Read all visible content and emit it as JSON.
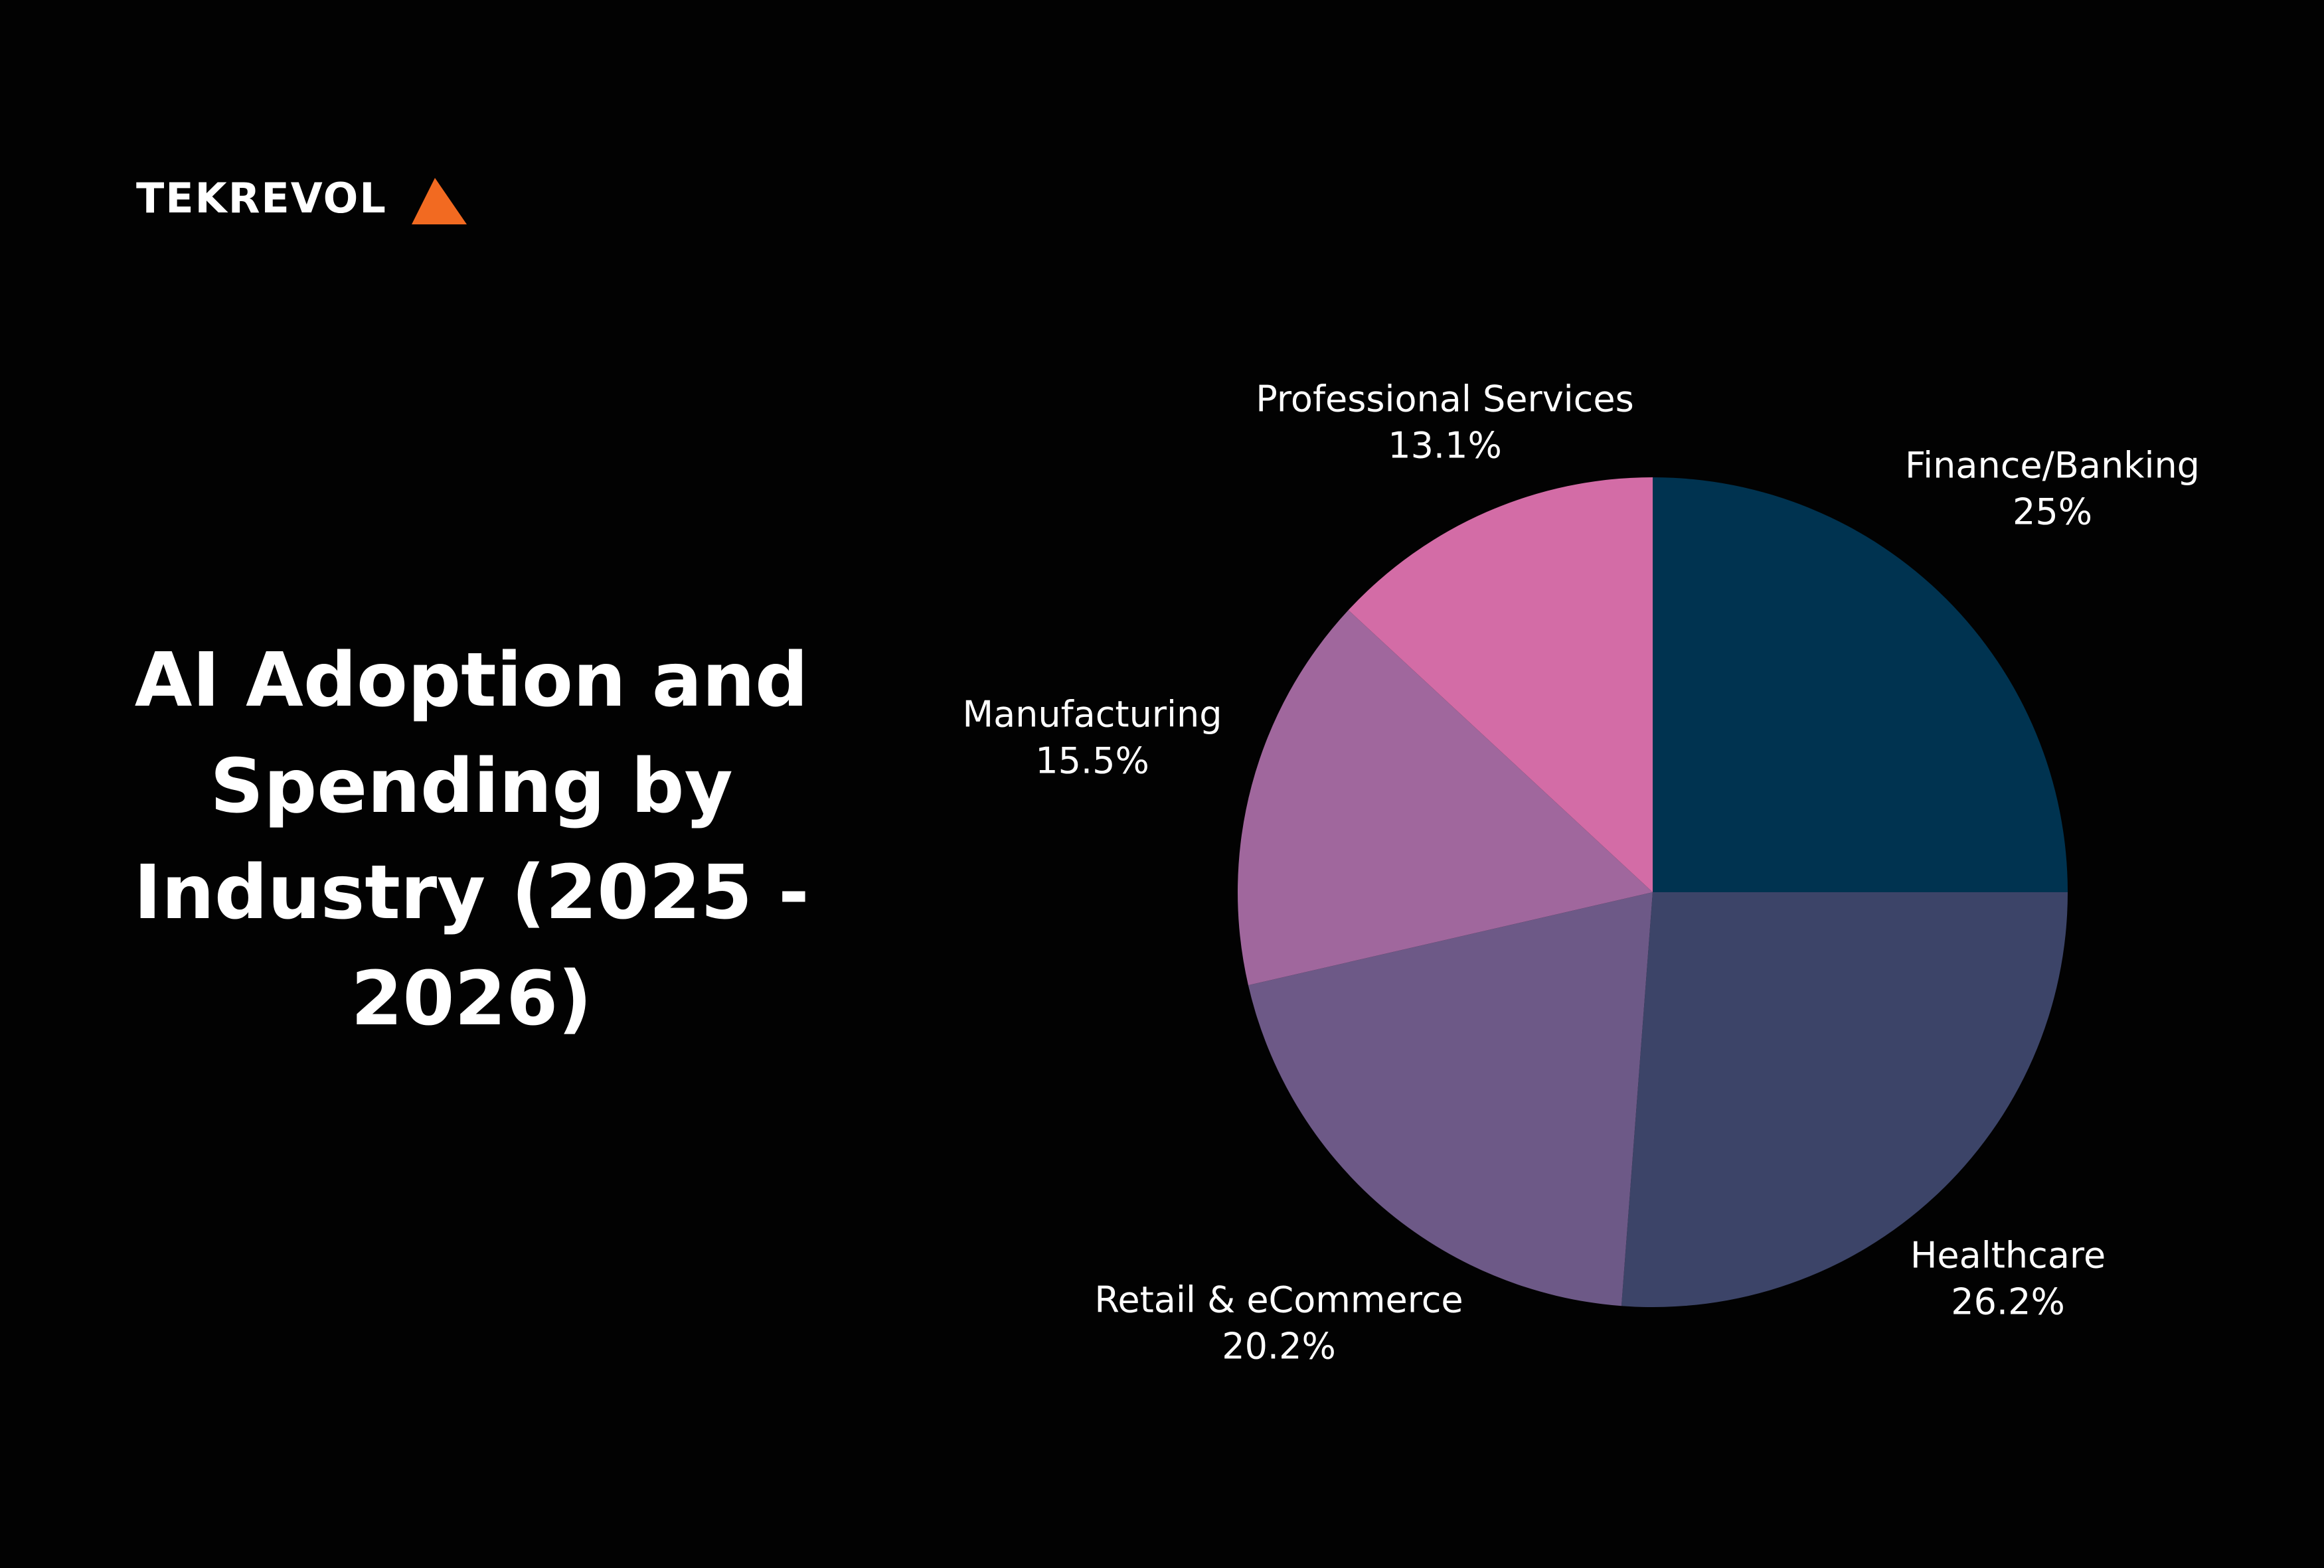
{
  "logo": "TEKREVOL",
  "chart_data": {
    "type": "pie",
    "title": "AI Adoption and Spending by Industry (2025 - 2026)",
    "categories": [
      "Finance/Banking",
      "Healthcare",
      "Retail & eCommerce",
      "Manufacturing",
      "Professional Services"
    ],
    "values": [
      25,
      26.2,
      20.2,
      15.5,
      13.1
    ],
    "value_labels": [
      "25%",
      "26.2%",
      "20.2%",
      "15.5%",
      "13.1%"
    ],
    "colors": [
      "#003350",
      "#3c4468",
      "#6d5987",
      "#a0679d",
      "#d36ca6"
    ]
  }
}
